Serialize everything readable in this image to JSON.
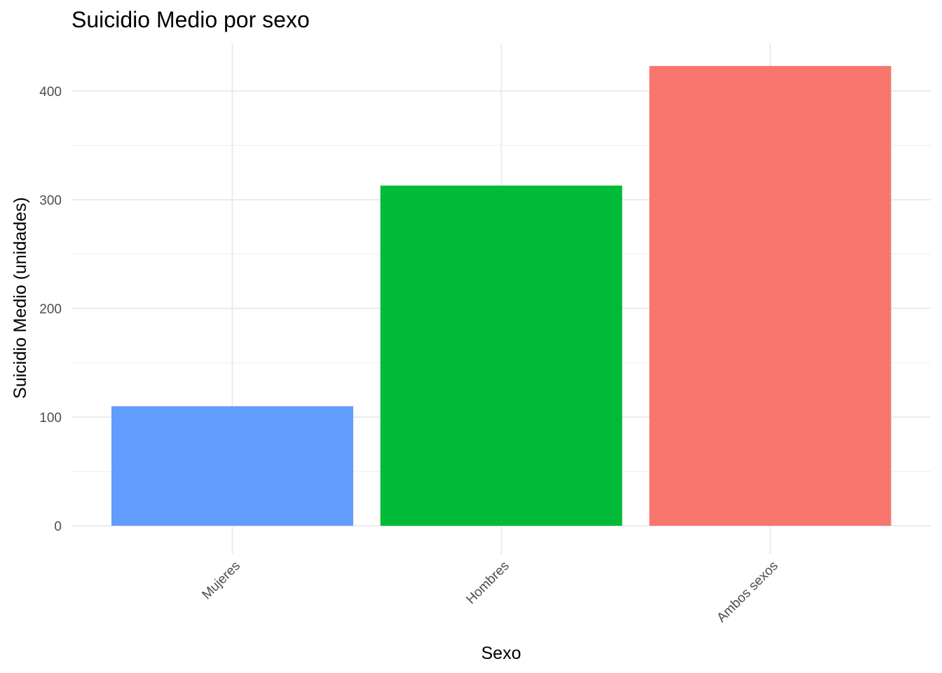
{
  "chart_data": {
    "type": "bar",
    "title": "Suicidio Medio por sexo",
    "xlabel": "Sexo",
    "ylabel": "Suicidio Medio (unidades)",
    "categories": [
      "Mujeres",
      "Hombres",
      "Ambos sexos"
    ],
    "values": [
      110,
      313,
      423
    ],
    "colors": [
      "#619CFF",
      "#00BA38",
      "#F8766D"
    ],
    "ylim": [
      0,
      440
    ],
    "yticks": [
      0,
      100,
      200,
      300,
      400
    ],
    "grid": true,
    "legend": "none"
  }
}
